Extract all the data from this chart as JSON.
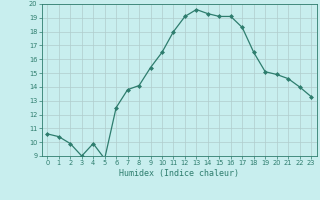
{
  "x": [
    0,
    1,
    2,
    3,
    4,
    5,
    6,
    7,
    8,
    9,
    10,
    11,
    12,
    13,
    14,
    15,
    16,
    17,
    18,
    19,
    20,
    21,
    22,
    23
  ],
  "y": [
    10.6,
    10.4,
    9.9,
    9.0,
    9.9,
    8.8,
    12.5,
    13.8,
    14.1,
    15.4,
    16.5,
    18.0,
    19.1,
    19.6,
    19.3,
    19.1,
    19.1,
    18.3,
    16.5,
    15.1,
    14.9,
    14.6,
    14.0,
    13.3
  ],
  "xlabel": "Humidex (Indice chaleur)",
  "xlim": [
    -0.5,
    23.5
  ],
  "ylim": [
    9,
    20
  ],
  "yticks": [
    9,
    10,
    11,
    12,
    13,
    14,
    15,
    16,
    17,
    18,
    19,
    20
  ],
  "xticks": [
    0,
    1,
    2,
    3,
    4,
    5,
    6,
    7,
    8,
    9,
    10,
    11,
    12,
    13,
    14,
    15,
    16,
    17,
    18,
    19,
    20,
    21,
    22,
    23
  ],
  "line_color": "#2e7d6e",
  "marker_color": "#2e7d6e",
  "bg_color": "#c8eeee",
  "grid_color": "#b0cccc",
  "axis_label_color": "#2e7d6e",
  "tick_color": "#2e7d6e",
  "spine_color": "#2e7d6e"
}
